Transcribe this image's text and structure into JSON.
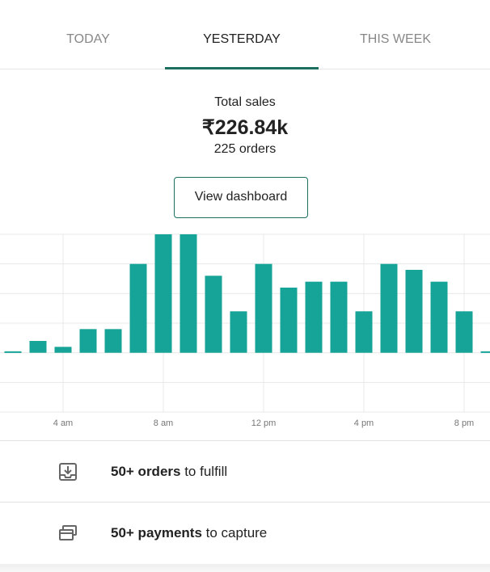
{
  "tabs": [
    "TODAY",
    "YESTERDAY",
    "THIS WEEK"
  ],
  "summary": {
    "label": "Total sales",
    "amount": "₹226.84k",
    "orders": "225 orders"
  },
  "button": "View dashboard",
  "chart_data": {
    "type": "bar",
    "color": "#16a398",
    "categories": [
      null,
      null,
      "4 am",
      null,
      null,
      null,
      "8 am",
      null,
      null,
      null,
      "12 pm",
      null,
      null,
      null,
      "4 pm",
      null,
      null,
      null,
      "8 pm",
      null
    ],
    "values": [
      0.05,
      0.4,
      0.2,
      0.8,
      0.8,
      3.0,
      4.0,
      4.0,
      2.6,
      1.4,
      3.0,
      2.2,
      2.4,
      2.4,
      1.4,
      3.0,
      2.8,
      2.4,
      1.4,
      0.05
    ],
    "ylim": [
      -2,
      4
    ],
    "yticks": [
      -2,
      -1,
      0,
      1,
      2,
      3,
      4
    ],
    "grid": true
  },
  "tasks": [
    {
      "bold": "50+ orders",
      "rest": " to fulfill"
    },
    {
      "bold": "50+ payments",
      "rest": " to capture"
    }
  ]
}
